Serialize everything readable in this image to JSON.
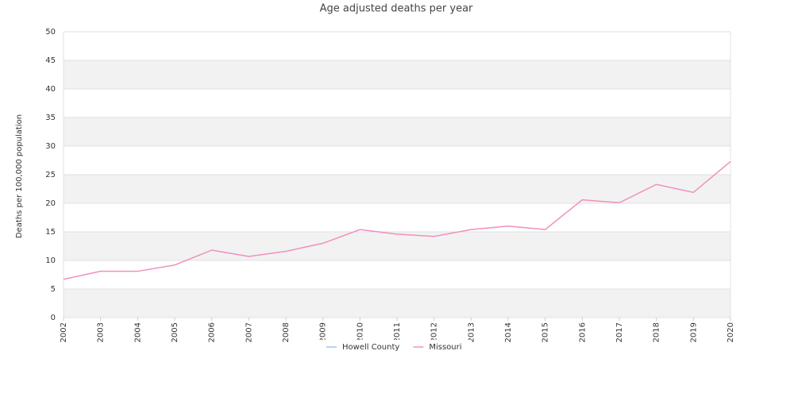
{
  "chart_data": {
    "type": "line",
    "title": "Age adjusted deaths per year",
    "ylabel": "Deaths per 100,000 population",
    "x": [
      2002,
      2003,
      2004,
      2005,
      2006,
      2007,
      2008,
      2009,
      2010,
      2011,
      2012,
      2013,
      2014,
      2015,
      2016,
      2017,
      2018,
      2019,
      2020
    ],
    "xlim": [
      2002,
      2020
    ],
    "xticks": [
      2002,
      2003,
      2004,
      2005,
      2006,
      2007,
      2008,
      2009,
      2010,
      2011,
      2012,
      2013,
      2014,
      2015,
      2016,
      2017,
      2018,
      2019,
      2020
    ],
    "ylim": [
      0,
      50
    ],
    "yticks": [
      0,
      5,
      10,
      15,
      20,
      25,
      30,
      35,
      40,
      45,
      50
    ],
    "grid": true,
    "legend": "bottom",
    "series": [
      {
        "name": "Howell County",
        "color": "#9fc5e8",
        "values": [
          null,
          null,
          null,
          null,
          null,
          null,
          null,
          null,
          null,
          null,
          null,
          null,
          null,
          null,
          null,
          null,
          null,
          null,
          null
        ]
      },
      {
        "name": "Missouri",
        "color": "#f28fbf",
        "values": [
          6.7,
          8.1,
          8.1,
          9.2,
          11.8,
          10.7,
          11.6,
          13.0,
          15.4,
          14.6,
          14.2,
          15.4,
          16.0,
          15.4,
          20.6,
          20.1,
          23.3,
          21.9,
          27.3
        ]
      }
    ]
  }
}
